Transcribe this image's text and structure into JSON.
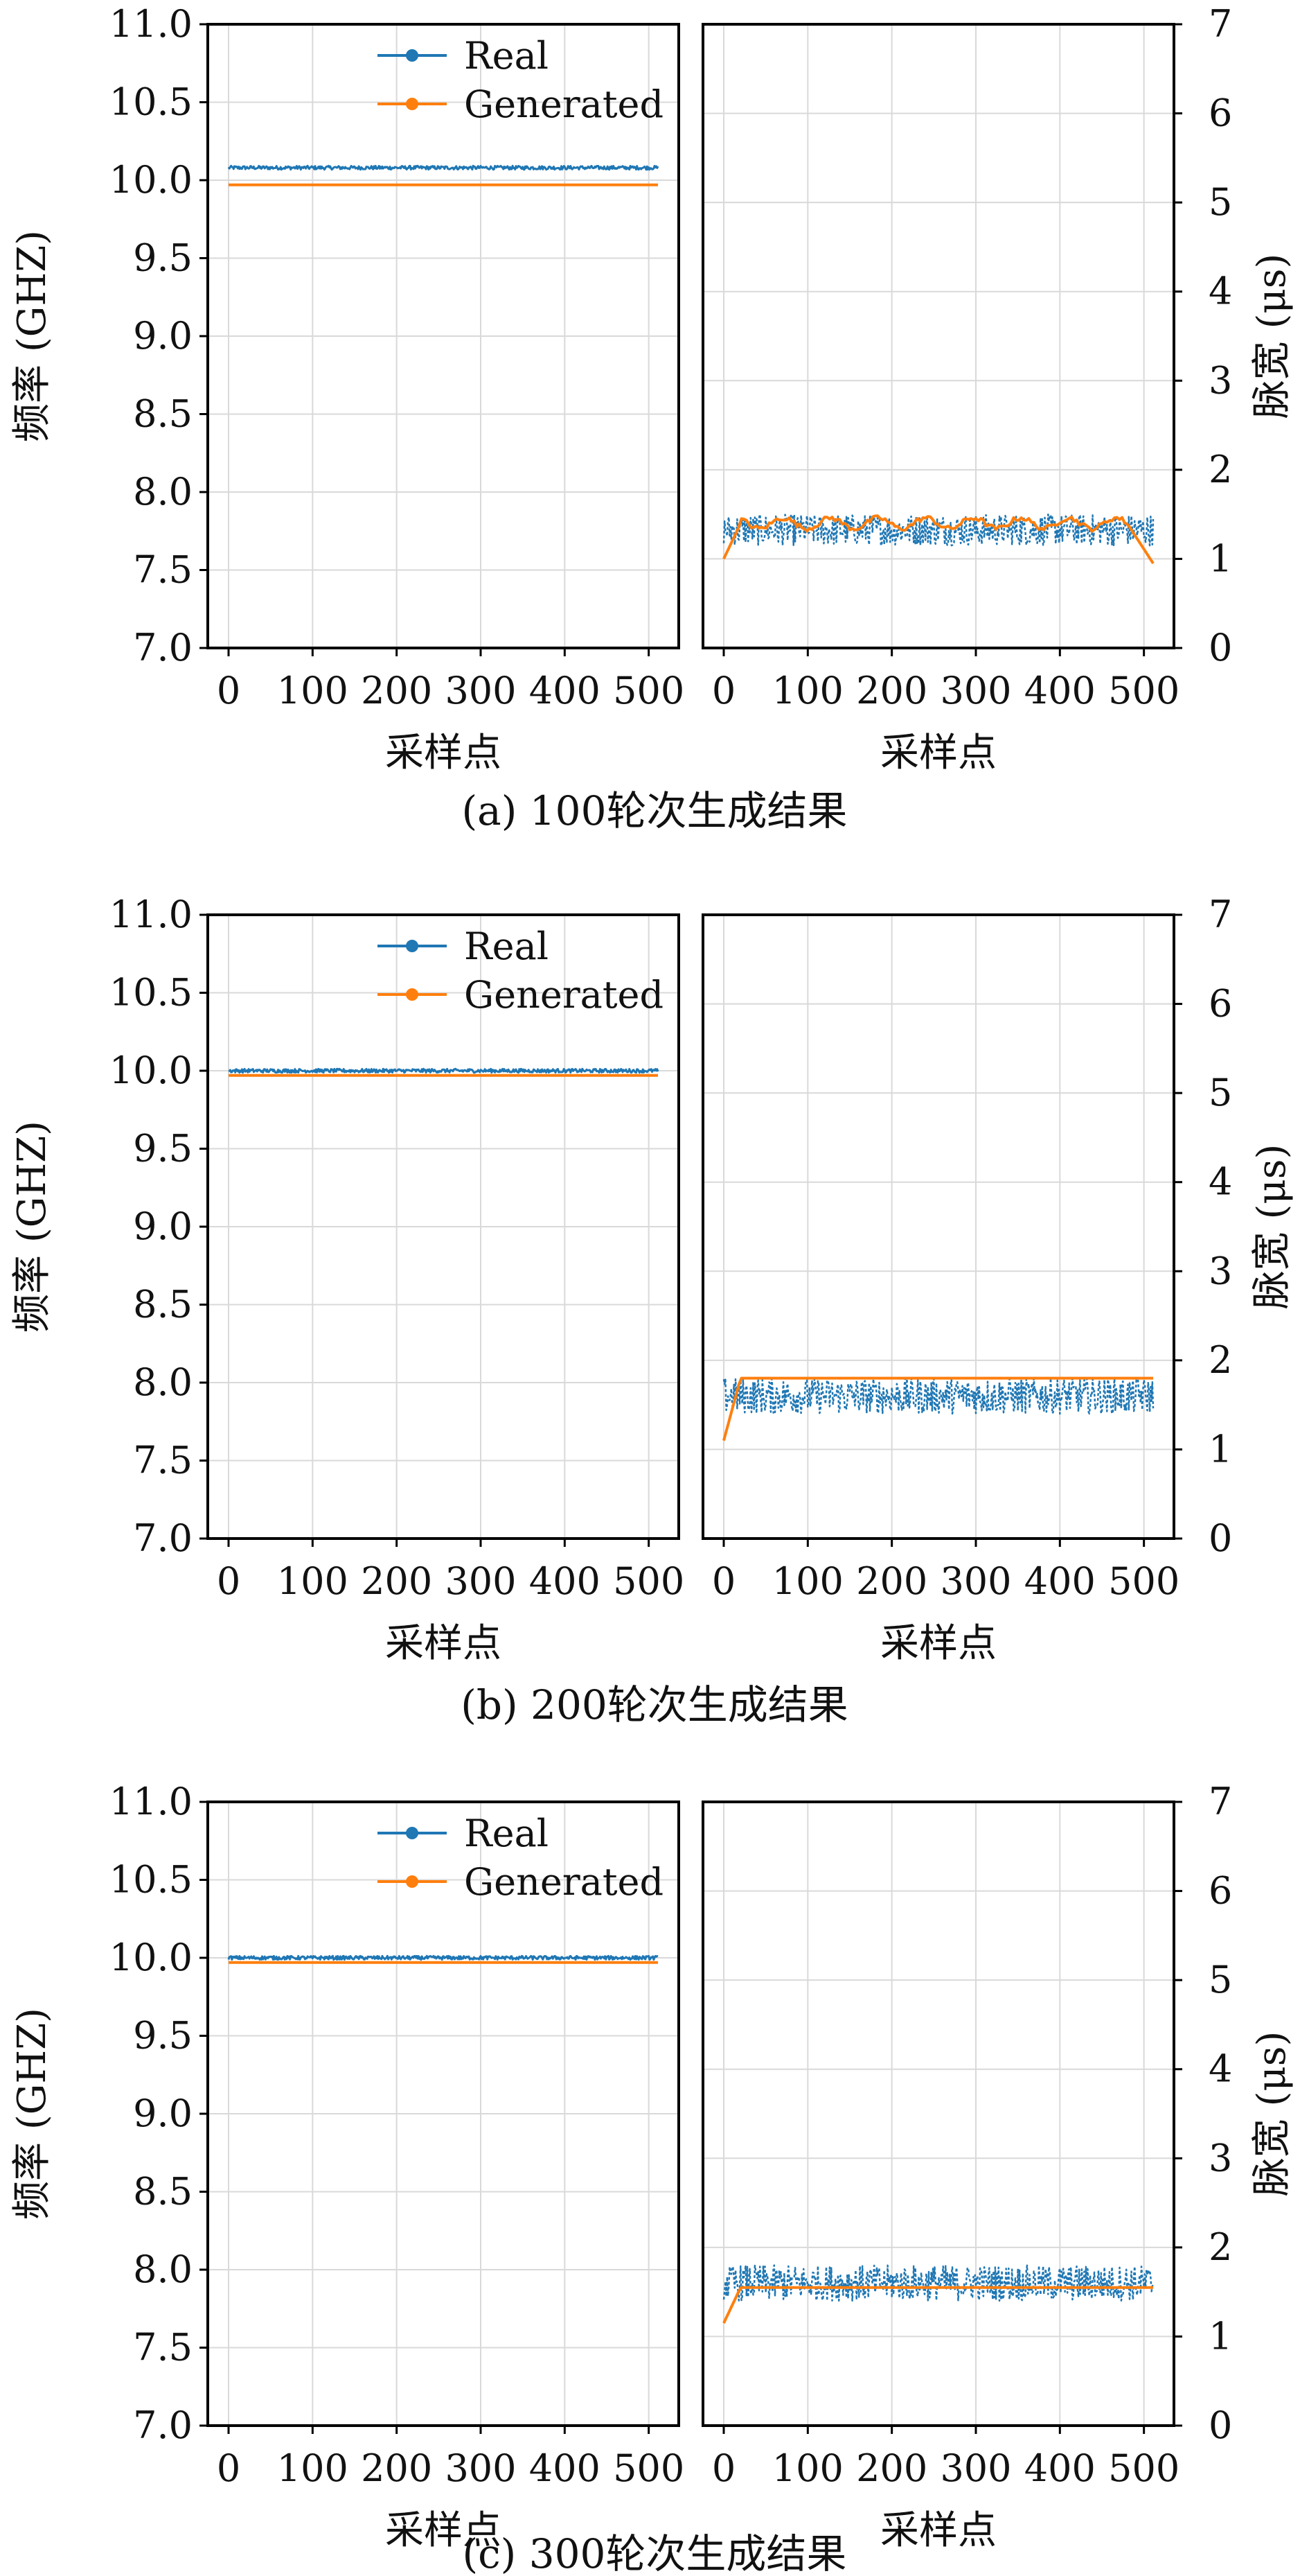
{
  "colors": {
    "real": "#1f77b4",
    "generated": "#ff7f0e"
  },
  "legend": {
    "real": "Real",
    "generated": "Generated"
  },
  "chart_data": [
    {
      "caption": "(a) 100轮次生成结果",
      "type": "line",
      "x_range": [
        0,
        511
      ],
      "freq": {
        "ylabel": "频率 (GHZ)",
        "ylim": [
          7.0,
          11.0
        ],
        "yticks": [
          "7.0",
          "7.5",
          "8.0",
          "8.5",
          "9.0",
          "9.5",
          "10.0",
          "10.5",
          "11.0"
        ],
        "xlabel": "采样点",
        "xticks": [
          "0",
          "100",
          "200",
          "300",
          "400",
          "500"
        ],
        "real": {
          "mean": 10.08,
          "spread": 0.012
        },
        "generated": {
          "mean": 9.97,
          "spread": 0.0
        }
      },
      "pw": {
        "ylabel": "脉宽 (μs)",
        "ylim": [
          0,
          7
        ],
        "yticks": [
          "0",
          "1",
          "2",
          "3",
          "4",
          "5",
          "6",
          "7"
        ],
        "xlabel": "采样点",
        "xticks": [
          "0",
          "100",
          "200",
          "300",
          "400",
          "500"
        ],
        "real": {
          "low": 1.15,
          "high": 1.5
        },
        "generated": {
          "start": 1.0,
          "plateau": 1.4,
          "wobble": 0.06,
          "end": 0.95
        }
      }
    },
    {
      "caption": "(b) 200轮次生成结果",
      "type": "line",
      "x_range": [
        0,
        511
      ],
      "freq": {
        "ylabel": "频率 (GHZ)",
        "ylim": [
          7.0,
          11.0
        ],
        "yticks": [
          "7.0",
          "7.5",
          "8.0",
          "8.5",
          "9.0",
          "9.5",
          "10.0",
          "10.5",
          "11.0"
        ],
        "xlabel": "采样点",
        "xticks": [
          "0",
          "100",
          "200",
          "300",
          "400",
          "500"
        ],
        "real": {
          "mean": 10.0,
          "spread": 0.012
        },
        "generated": {
          "mean": 9.97,
          "spread": 0.0
        }
      },
      "pw": {
        "ylabel": "脉宽 (μs)",
        "ylim": [
          0,
          7
        ],
        "yticks": [
          "0",
          "1",
          "2",
          "3",
          "4",
          "5",
          "6",
          "7"
        ],
        "xlabel": "采样点",
        "xticks": [
          "0",
          "100",
          "200",
          "300",
          "400",
          "500"
        ],
        "real": {
          "low": 1.4,
          "high": 1.8
        },
        "generated": {
          "start": 1.1,
          "plateau": 1.8,
          "wobble": 0.0,
          "end": 1.8
        }
      }
    },
    {
      "caption": "(c) 300轮次生成结果",
      "type": "line",
      "x_range": [
        0,
        511
      ],
      "freq": {
        "ylabel": "频率 (GHZ)",
        "ylim": [
          7.0,
          11.0
        ],
        "yticks": [
          "7.0",
          "7.5",
          "8.0",
          "8.5",
          "9.0",
          "9.5",
          "10.0",
          "10.5",
          "11.0"
        ],
        "xlabel": "采样点",
        "xticks": [
          "0",
          "100",
          "200",
          "300",
          "400",
          "500"
        ],
        "real": {
          "mean": 10.0,
          "spread": 0.012
        },
        "generated": {
          "mean": 9.97,
          "spread": 0.0
        }
      },
      "pw": {
        "ylabel": "脉宽 (μs)",
        "ylim": [
          0,
          7
        ],
        "yticks": [
          "0",
          "1",
          "2",
          "3",
          "4",
          "5",
          "6",
          "7"
        ],
        "xlabel": "采样点",
        "xticks": [
          "0",
          "100",
          "200",
          "300",
          "400",
          "500"
        ],
        "real": {
          "low": 1.4,
          "high": 1.8
        },
        "generated": {
          "start": 1.15,
          "plateau": 1.55,
          "wobble": 0.0,
          "end": 1.55
        }
      }
    }
  ]
}
